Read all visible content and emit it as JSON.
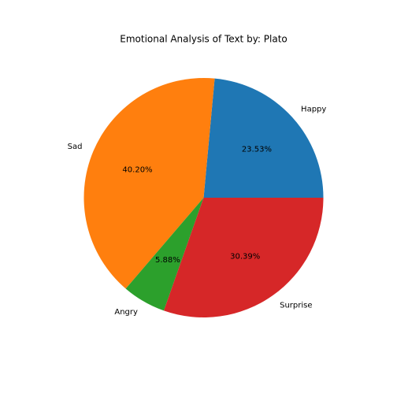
{
  "chart_data": {
    "type": "pie",
    "title": "Emotional Analysis of Text by: Plato",
    "categories": [
      "Happy",
      "Sad",
      "Angry",
      "Surprise"
    ],
    "values": [
      23.53,
      40.2,
      5.88,
      30.39
    ],
    "percent_labels": [
      "23.53%",
      "40.20%",
      "5.88%",
      "30.39%"
    ],
    "colors": [
      "#1f77b4",
      "#ff7f0e",
      "#2ca02c",
      "#d62728"
    ],
    "start_angle_deg": 0,
    "direction": "counterclockwise",
    "legend": "none"
  }
}
